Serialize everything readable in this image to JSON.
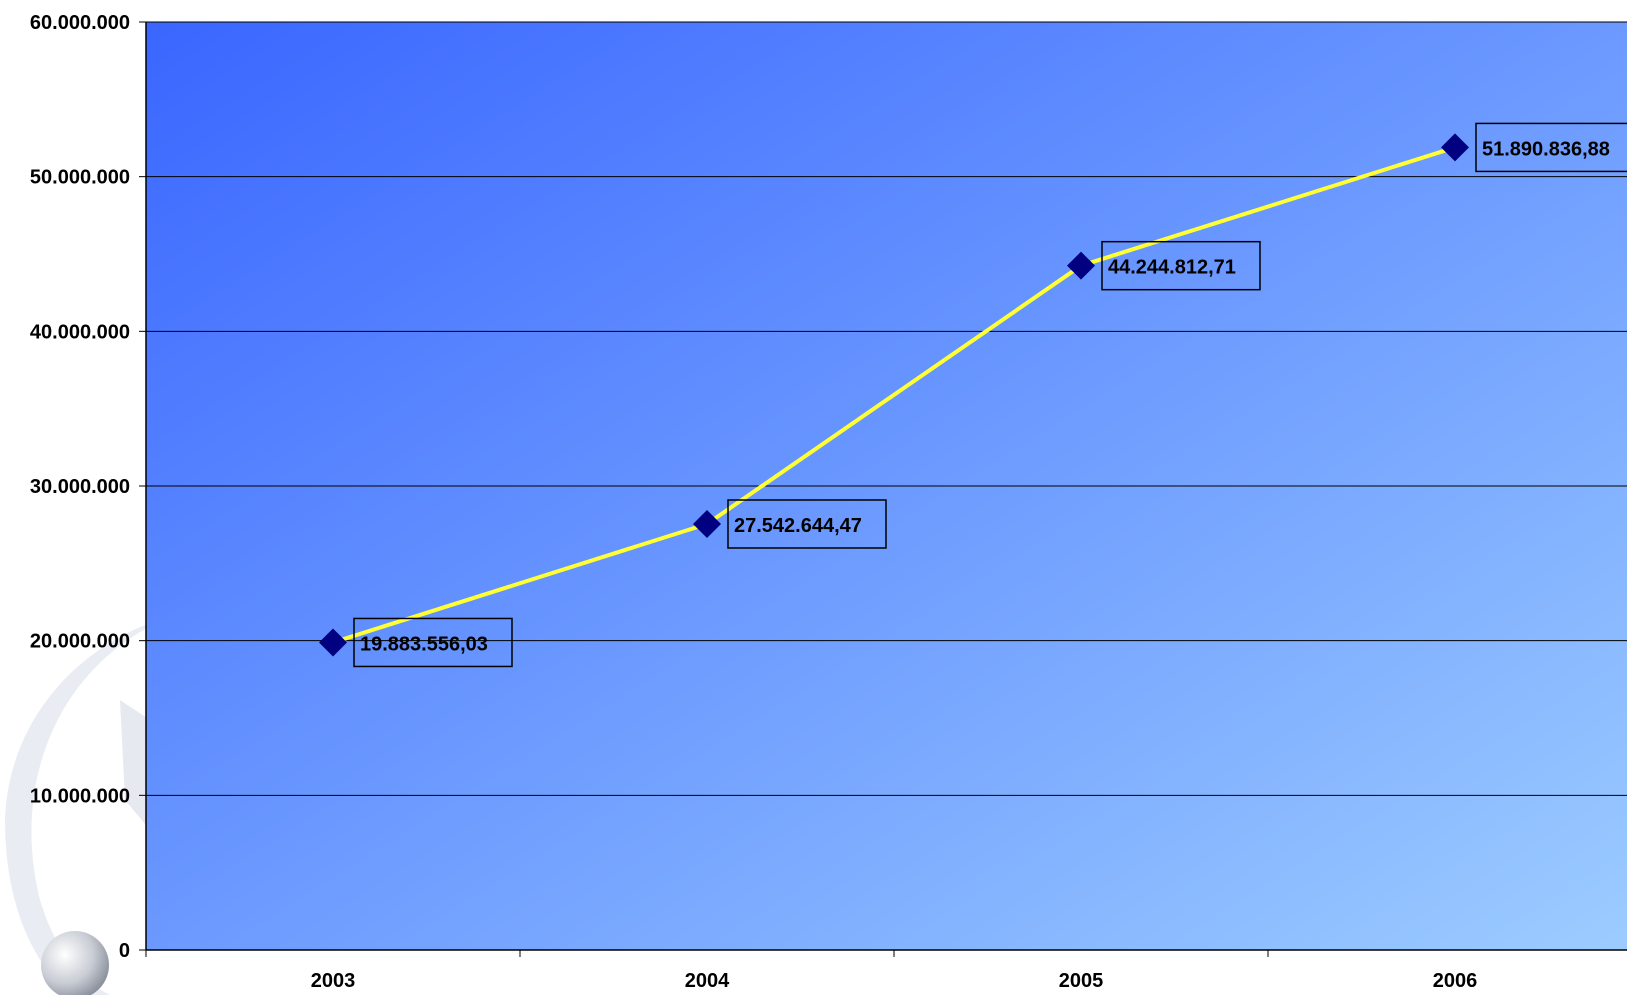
{
  "chart_data": {
    "type": "line",
    "title": "",
    "xlabel": "",
    "ylabel": "",
    "categories": [
      "2003",
      "2004",
      "2005",
      "2006"
    ],
    "series": [
      {
        "values": [
          19883556.03,
          27542644.47,
          44244812.71,
          51890836.88
        ],
        "data_labels": [
          "19.883.556,03",
          "27.542.644,47",
          "44.244.812,71",
          "51.890.836,88"
        ],
        "line_color": "#ffff33",
        "marker": "diamond",
        "marker_color": "#000080"
      }
    ],
    "ylim": [
      0,
      60000000
    ],
    "y_ticks": [
      0,
      10000000,
      20000000,
      30000000,
      40000000,
      50000000,
      60000000
    ],
    "y_tick_labels": [
      "0",
      "10.000.000",
      "20.000.000",
      "30.000.000",
      "40.000.000",
      "50.000.000",
      "60.000.000"
    ],
    "grid": true,
    "legend": "none",
    "background_gradient": [
      "#3a66ff",
      "#9cccff"
    ]
  }
}
